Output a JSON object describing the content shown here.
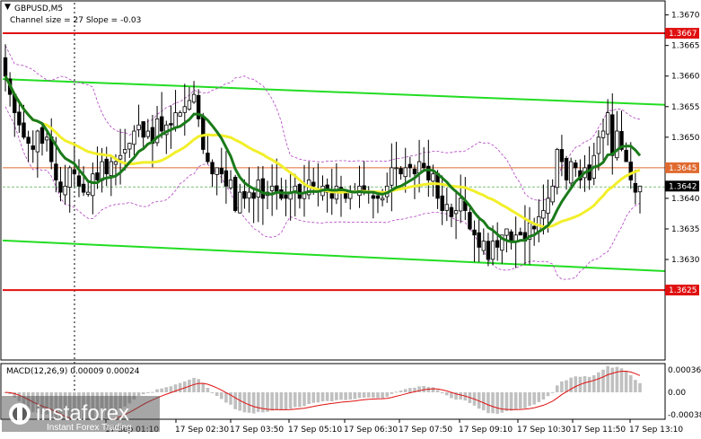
{
  "header": {
    "symbol_label": "GBPUSD,M5",
    "channel_label": "Channel size = 27 Slope = -0.03"
  },
  "macd": {
    "label": "MACD(12,26,9) 0.00009 0.00024",
    "ticks": [
      "0.00036",
      "0.00",
      "-0.00038"
    ]
  },
  "watermark": {
    "brand": "instaforex",
    "tagline": "Instant Forex Trading"
  },
  "colors": {
    "background": "#ffffff",
    "bull_candle": "#ffffff",
    "bear_candle": "#000000",
    "ma_fast": "#1a7a1a",
    "ma_slow": "#f2ef2a",
    "bollinger": "#b040c0",
    "channel": "#22dd22",
    "level_line": "#e01010",
    "bid_line": "#e06a30",
    "current_tag": "#000000",
    "macd_hist": "#c0c0c0",
    "macd_signal": "#e01010"
  },
  "chart_data": {
    "type": "candlestick",
    "symbol": "GBPUSD",
    "timeframe": "M5",
    "y_ticks": [
      "1.3670",
      "1.3665",
      "1.3660",
      "1.3655",
      "1.3650",
      "1.3645",
      "1.3640",
      "1.3635",
      "1.3630"
    ],
    "ylim": [
      1.3614,
      1.3672
    ],
    "x_ticks": [
      "17 Sep 01:10",
      "17 Sep 02:30",
      "17 Sep 03:50",
      "17 Sep 05:10",
      "17 Sep 06:30",
      "17 Sep 07:50",
      "17 Sep 09:10",
      "17 Sep 10:30",
      "17 Sep 11:50",
      "17 Sep 13:10"
    ],
    "price_tags": [
      {
        "label": "1.3667",
        "value": 1.3667,
        "kind": "level"
      },
      {
        "label": "1.3645",
        "value": 1.3645,
        "kind": "bid"
      },
      {
        "label": "1.3642",
        "value": 1.3642,
        "kind": "current"
      },
      {
        "label": "1.3625",
        "value": 1.3625,
        "kind": "level"
      }
    ],
    "levels": [
      1.3667,
      1.3625
    ],
    "bid_line": 1.3645,
    "channel": {
      "upper": [
        1.36595,
        1.36553
      ],
      "lower": [
        1.36331,
        1.36281
      ]
    },
    "closes": [
      1.366,
      1.3657,
      1.3654,
      1.3652,
      1.365,
      1.3649,
      1.3648,
      1.3651,
      1.3649,
      1.365,
      1.3646,
      1.3643,
      1.3641,
      1.3642,
      1.3645,
      1.3644,
      1.3642,
      1.3641,
      1.3641,
      1.3644,
      1.3643,
      1.3646,
      1.3644,
      1.3646,
      1.3646,
      1.3647,
      1.3648,
      1.3649,
      1.3651,
      1.3652,
      1.365,
      1.3651,
      1.3649,
      1.3653,
      1.3651,
      1.3652,
      1.3652,
      1.3654,
      1.3654,
      1.3655,
      1.3656,
      1.3657,
      1.3653,
      1.3648,
      1.3646,
      1.3644,
      1.3645,
      1.3644,
      1.3642,
      1.3643,
      1.3638,
      1.3641,
      1.364,
      1.3641,
      1.364,
      1.3643,
      1.364,
      1.3641,
      1.3642,
      1.3641,
      1.364,
      1.364,
      1.3641,
      1.3642,
      1.364,
      1.3641,
      1.3643,
      1.3642,
      1.3641,
      1.3642,
      1.3641,
      1.364,
      1.3642,
      1.3641,
      1.364,
      1.3641,
      1.3641,
      1.3642,
      1.3641,
      1.3641,
      1.364,
      1.364,
      1.364,
      1.3642,
      1.3645,
      1.3645,
      1.3644,
      1.3645,
      1.3645,
      1.3644,
      1.3646,
      1.3645,
      1.3643,
      1.3644,
      1.364,
      1.3638,
      1.3639,
      1.3637,
      1.3638,
      1.364,
      1.3638,
      1.3635,
      1.3634,
      1.3632,
      1.3633,
      1.363,
      1.3633,
      1.3632,
      1.3634,
      1.3635,
      1.3633,
      1.3634,
      1.3634,
      1.3633,
      1.3636,
      1.3635,
      1.3637,
      1.3638,
      1.364,
      1.3642,
      1.3648,
      1.3646,
      1.3643,
      1.3646,
      1.3645,
      1.3643,
      1.3645,
      1.3643,
      1.3647,
      1.365,
      1.3651,
      1.3654,
      1.3647,
      1.3651,
      1.3648,
      1.3646,
      1.3643,
      1.3641,
      1.3642
    ]
  }
}
